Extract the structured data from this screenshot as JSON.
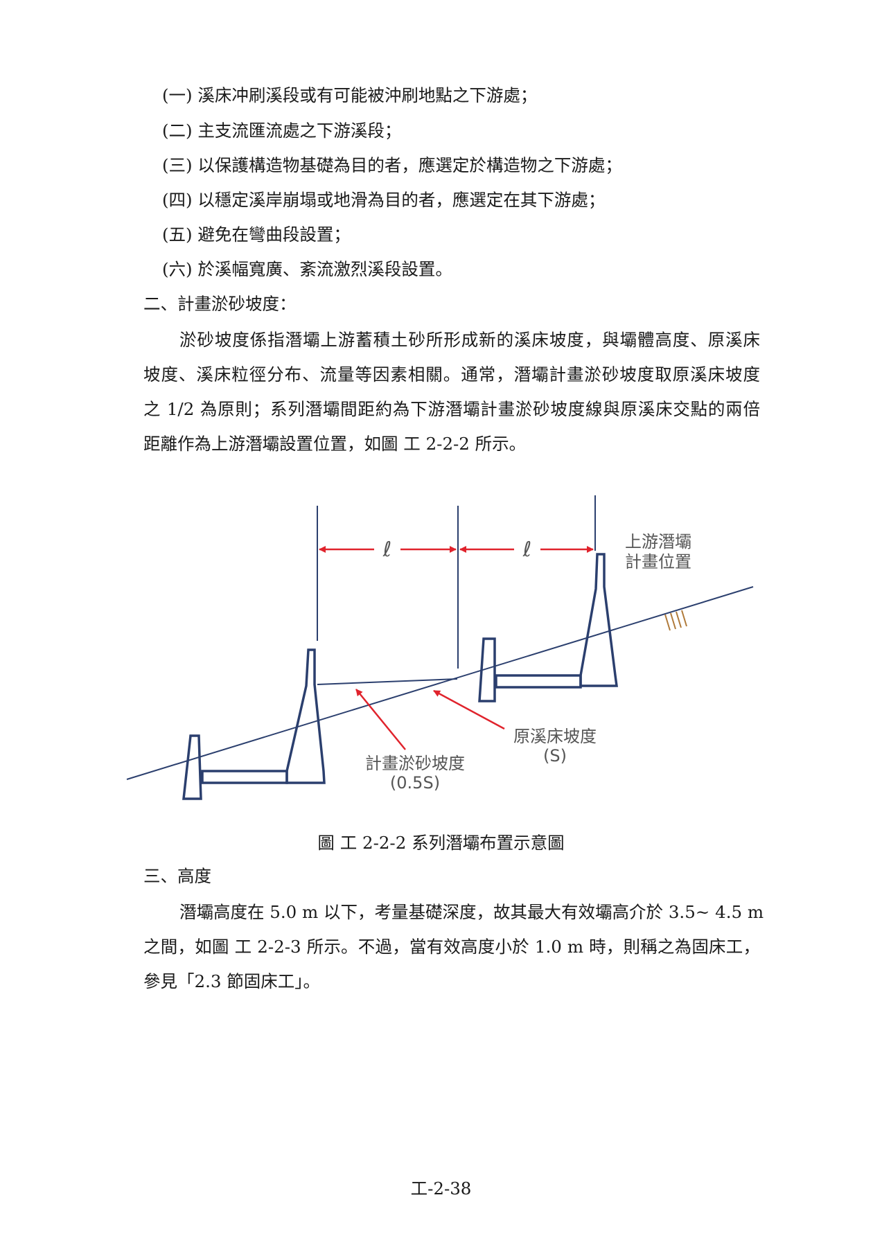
{
  "list_items": [
    "(一) 溪床冲刷溪段或有可能被沖刷地點之下游處；",
    "(二) 主支流匯流處之下游溪段；",
    "(三) 以保護構造物基礎為目的者，應選定於構造物之下游處；",
    "(四) 以穩定溪岸崩塌或地滑為目的者，應選定在其下游處；",
    "(五) 避免在彎曲段設置；",
    "(六) 於溪幅寬廣、紊流激烈溪段設置。"
  ],
  "section2": {
    "heading": "二、計畫淤砂坡度：",
    "para_lines": [
      "淤砂坡度係指潛壩上游蓄積土砂所形成新的溪床坡度，與壩體高度、原溪床",
      "坡度、溪床粒徑分布、流量等因素相關。通常，潛壩計畫淤砂坡度取原溪床坡度",
      "之 1/2 為原則；系列潛壩間距約為下游潛壩計畫淤砂坡度線與原溪床交點的兩倍",
      "距離作為上游潛壩設置位置，如圖 工 2-2-2 所示。"
    ]
  },
  "figure": {
    "label_upstream_line1": "上游潛壩",
    "label_upstream_line2": "計畫位置",
    "spacing_symbol_1": "ℓ",
    "spacing_symbol_2": "ℓ",
    "label_original_slope": "原溪床坡度",
    "label_original_slope_symbol": "(S)",
    "label_planned_slope": "計畫淤砂坡度",
    "label_planned_slope_symbol": "(0.5S)",
    "caption": "圖 工 2-2-2 系列潛壩布置示意圖",
    "colors": {
      "structure": "#2b3f6e",
      "arrow": "#e0232c",
      "hatch": "#b07a3a",
      "label": "#555555"
    }
  },
  "section3": {
    "heading": "三、高度",
    "para_lines": [
      "潛壩高度在 5.0 m 以下，考量基礎深度，故其最大有效壩高介於 3.5~ 4.5 m",
      "之間，如圖 工 2-2-3 所示。不過，當有效高度小於 1.0 m 時，則稱之為固床工，",
      "參見「2.3 節固床工」。"
    ]
  },
  "page_number": "工-2-38"
}
